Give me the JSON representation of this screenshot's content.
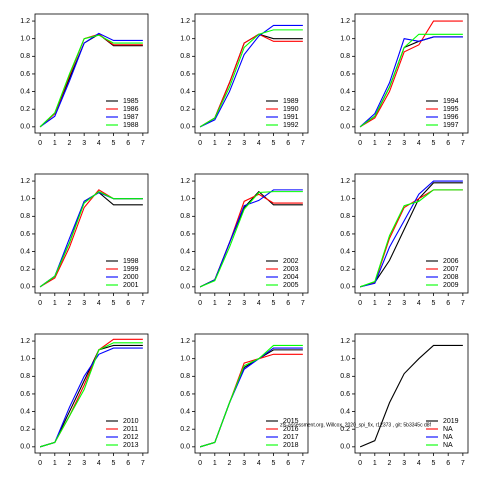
{
  "chart_data": [
    {
      "type": "line",
      "x": [
        0,
        1,
        2,
        3,
        4,
        5,
        6,
        7
      ],
      "xlim": [
        -0.35,
        7.35
      ],
      "xticks": [
        0,
        1,
        2,
        3,
        4,
        5,
        6,
        7
      ],
      "ylim": [
        -0.07,
        1.28
      ],
      "yticks": [
        {
          "value": 0,
          "label": "0.0"
        },
        0.2,
        0.4,
        0.6,
        0.8,
        {
          "value": 1,
          "label": "1.0"
        },
        1.2
      ],
      "legend": "bottom right",
      "series": [
        {
          "name": "1985",
          "color": "#000000",
          "values": [
            0,
            0.15,
            0.55,
            0.95,
            1.05,
            0.92,
            0.92,
            0.92
          ]
        },
        {
          "name": "1986",
          "color": "#ff0000",
          "values": [
            0,
            0.15,
            0.58,
            1.0,
            1.05,
            0.93,
            0.93,
            0.93
          ]
        },
        {
          "name": "1987",
          "color": "#0000ff",
          "values": [
            0,
            0.12,
            0.52,
            0.95,
            1.06,
            0.98,
            0.98,
            0.98
          ]
        },
        {
          "name": "1988",
          "color": "#00ff00",
          "values": [
            0,
            0.16,
            0.6,
            1.0,
            1.04,
            0.95,
            0.95,
            0.95
          ]
        }
      ]
    },
    {
      "type": "line",
      "x": [
        0,
        1,
        2,
        3,
        4,
        5,
        6,
        7
      ],
      "xlim": [
        -0.35,
        7.35
      ],
      "xticks": [
        0,
        1,
        2,
        3,
        4,
        5,
        6,
        7
      ],
      "ylim": [
        -0.07,
        1.28
      ],
      "yticks": [
        {
          "value": 0,
          "label": "0.0"
        },
        0.2,
        0.4,
        0.6,
        0.8,
        {
          "value": 1,
          "label": "1.0"
        },
        1.2
      ],
      "legend": "bottom right",
      "series": [
        {
          "name": "1989",
          "color": "#000000",
          "values": [
            0,
            0.1,
            0.5,
            0.95,
            1.05,
            1.0,
            1.0,
            1.0
          ]
        },
        {
          "name": "1990",
          "color": "#ff0000",
          "values": [
            0,
            0.1,
            0.5,
            0.95,
            1.05,
            0.97,
            0.97,
            0.97
          ]
        },
        {
          "name": "1991",
          "color": "#0000ff",
          "values": [
            0,
            0.08,
            0.4,
            0.82,
            1.03,
            1.15,
            1.15,
            1.15
          ]
        },
        {
          "name": "1992",
          "color": "#00ff00",
          "values": [
            0,
            0.1,
            0.45,
            0.9,
            1.05,
            1.1,
            1.1,
            1.1
          ]
        }
      ]
    },
    {
      "type": "line",
      "x": [
        0,
        1,
        2,
        3,
        4,
        5,
        6,
        7
      ],
      "xlim": [
        -0.35,
        7.35
      ],
      "xticks": [
        0,
        1,
        2,
        3,
        4,
        5,
        6,
        7
      ],
      "ylim": [
        -0.07,
        1.28
      ],
      "yticks": [
        {
          "value": 0,
          "label": "0.0"
        },
        0.2,
        0.4,
        0.6,
        0.8,
        {
          "value": 1,
          "label": "1.0"
        },
        1.2
      ],
      "legend": "bottom right",
      "series": [
        {
          "name": "1994",
          "color": "#000000",
          "values": [
            0,
            0.12,
            0.45,
            0.9,
            0.97,
            1.02,
            1.02,
            1.02
          ]
        },
        {
          "name": "1995",
          "color": "#ff0000",
          "values": [
            0,
            0.1,
            0.4,
            0.85,
            0.93,
            1.2,
            1.2,
            1.2
          ]
        },
        {
          "name": "1996",
          "color": "#0000ff",
          "values": [
            0,
            0.15,
            0.5,
            1.0,
            0.97,
            1.02,
            1.02,
            1.02
          ]
        },
        {
          "name": "1997",
          "color": "#00ff00",
          "values": [
            0,
            0.12,
            0.45,
            0.9,
            1.05,
            1.05,
            1.05,
            1.05
          ]
        }
      ]
    },
    {
      "type": "line",
      "x": [
        0,
        1,
        2,
        3,
        4,
        5,
        6,
        7
      ],
      "xlim": [
        -0.35,
        7.35
      ],
      "xticks": [
        0,
        1,
        2,
        3,
        4,
        5,
        6,
        7
      ],
      "ylim": [
        -0.07,
        1.28
      ],
      "yticks": [
        {
          "value": 0,
          "label": "0.0"
        },
        0.2,
        0.4,
        0.6,
        0.8,
        {
          "value": 1,
          "label": "1.0"
        },
        1.2
      ],
      "legend": "bottom right",
      "series": [
        {
          "name": "1998",
          "color": "#000000",
          "values": [
            0,
            0.12,
            0.5,
            0.97,
            1.07,
            0.93,
            0.93,
            0.93
          ]
        },
        {
          "name": "1999",
          "color": "#ff0000",
          "values": [
            0,
            0.1,
            0.45,
            0.9,
            1.1,
            1.0,
            1.0,
            1.0
          ]
        },
        {
          "name": "2000",
          "color": "#0000ff",
          "values": [
            0,
            0.12,
            0.55,
            0.97,
            1.07,
            1.0,
            1.0,
            1.0
          ]
        },
        {
          "name": "2001",
          "color": "#00ff00",
          "values": [
            0,
            0.12,
            0.5,
            0.95,
            1.08,
            1.0,
            1.0,
            1.0
          ]
        }
      ]
    },
    {
      "type": "line",
      "x": [
        0,
        1,
        2,
        3,
        4,
        5,
        6,
        7
      ],
      "xlim": [
        -0.35,
        7.35
      ],
      "xticks": [
        0,
        1,
        2,
        3,
        4,
        5,
        6,
        7
      ],
      "ylim": [
        -0.07,
        1.28
      ],
      "yticks": [
        {
          "value": 0,
          "label": "0.0"
        },
        0.2,
        0.4,
        0.6,
        0.8,
        {
          "value": 1,
          "label": "1.0"
        },
        1.2
      ],
      "legend": "bottom right",
      "series": [
        {
          "name": "2002",
          "color": "#000000",
          "values": [
            0,
            0.08,
            0.5,
            0.9,
            1.08,
            0.93,
            0.93,
            0.93
          ]
        },
        {
          "name": "2003",
          "color": "#ff0000",
          "values": [
            0,
            0.08,
            0.5,
            0.97,
            1.05,
            0.95,
            0.95,
            0.95
          ]
        },
        {
          "name": "2004",
          "color": "#0000ff",
          "values": [
            0,
            0.08,
            0.5,
            0.92,
            0.98,
            1.1,
            1.1,
            1.1
          ]
        },
        {
          "name": "2005",
          "color": "#00ff00",
          "values": [
            0,
            0.07,
            0.45,
            0.88,
            1.07,
            1.08,
            1.08,
            1.08
          ]
        }
      ]
    },
    {
      "type": "line",
      "x": [
        0,
        1,
        2,
        3,
        4,
        5,
        6,
        7
      ],
      "xlim": [
        -0.35,
        7.35
      ],
      "xticks": [
        0,
        1,
        2,
        3,
        4,
        5,
        6,
        7
      ],
      "ylim": [
        -0.07,
        1.28
      ],
      "yticks": [
        {
          "value": 0,
          "label": "0.0"
        },
        0.2,
        0.4,
        0.6,
        0.8,
        {
          "value": 1,
          "label": "1.0"
        },
        1.2
      ],
      "legend": "bottom right",
      "series": [
        {
          "name": "2006",
          "color": "#000000",
          "values": [
            0,
            0.05,
            0.3,
            0.65,
            1.0,
            1.18,
            1.18,
            1.18
          ]
        },
        {
          "name": "2007",
          "color": "#ff0000",
          "values": [
            0,
            0.05,
            0.55,
            0.9,
            1.0,
            1.1,
            1.1,
            1.1
          ]
        },
        {
          "name": "2008",
          "color": "#0000ff",
          "values": [
            0,
            0.04,
            0.45,
            0.75,
            1.05,
            1.2,
            1.2,
            1.2
          ]
        },
        {
          "name": "2009",
          "color": "#00ff00",
          "values": [
            0,
            0.06,
            0.58,
            0.92,
            0.97,
            1.1,
            1.1,
            1.1
          ]
        }
      ]
    },
    {
      "type": "line",
      "x": [
        0,
        1,
        2,
        3,
        4,
        5,
        6,
        7
      ],
      "xlim": [
        -0.35,
        7.35
      ],
      "xticks": [
        0,
        1,
        2,
        3,
        4,
        5,
        6,
        7
      ],
      "ylim": [
        -0.07,
        1.28
      ],
      "yticks": [
        {
          "value": 0,
          "label": "0.0"
        },
        0.2,
        0.4,
        0.6,
        0.8,
        {
          "value": 1,
          "label": "1.0"
        },
        1.2
      ],
      "legend": "bottom right",
      "series": [
        {
          "name": "2010",
          "color": "#000000",
          "values": [
            0,
            0.05,
            0.4,
            0.75,
            1.1,
            1.15,
            1.15,
            1.15
          ]
        },
        {
          "name": "2011",
          "color": "#ff0000",
          "values": [
            0,
            0.05,
            0.35,
            0.7,
            1.1,
            1.22,
            1.22,
            1.22
          ]
        },
        {
          "name": "2012",
          "color": "#0000ff",
          "values": [
            0,
            0.05,
            0.45,
            0.8,
            1.05,
            1.12,
            1.12,
            1.12
          ]
        },
        {
          "name": "2013",
          "color": "#00ff00",
          "values": [
            0,
            0.05,
            0.35,
            0.65,
            1.1,
            1.18,
            1.18,
            1.18
          ]
        }
      ]
    },
    {
      "type": "line",
      "x": [
        0,
        1,
        2,
        3,
        4,
        5,
        6,
        7
      ],
      "xlim": [
        -0.35,
        7.35
      ],
      "xticks": [
        0,
        1,
        2,
        3,
        4,
        5,
        6,
        7
      ],
      "ylim": [
        -0.07,
        1.28
      ],
      "yticks": [
        {
          "value": 0,
          "label": "0.0"
        },
        0.2,
        0.4,
        0.6,
        0.8,
        {
          "value": 1,
          "label": "1.0"
        },
        1.2
      ],
      "legend": "bottom right",
      "series": [
        {
          "name": "2015",
          "color": "#000000",
          "values": [
            0,
            0.05,
            0.5,
            0.9,
            1.0,
            1.1,
            1.1,
            1.1
          ]
        },
        {
          "name": "2016",
          "color": "#ff0000",
          "values": [
            0,
            0.05,
            0.5,
            0.95,
            1.0,
            1.05,
            1.05,
            1.05
          ]
        },
        {
          "name": "2017",
          "color": "#0000ff",
          "values": [
            0,
            0.05,
            0.5,
            0.88,
            1.0,
            1.12,
            1.12,
            1.12
          ]
        },
        {
          "name": "2018",
          "color": "#00ff00",
          "values": [
            0,
            0.05,
            0.5,
            0.92,
            1.0,
            1.15,
            1.15,
            1.15
          ]
        }
      ]
    },
    {
      "type": "line",
      "x": [
        0,
        1,
        2,
        3,
        4,
        5,
        6,
        7
      ],
      "xlim": [
        -0.35,
        7.35
      ],
      "xticks": [
        0,
        1,
        2,
        3,
        4,
        5,
        6,
        7
      ],
      "ylim": [
        -0.07,
        1.28
      ],
      "yticks": [
        {
          "value": 0,
          "label": "0.0"
        },
        0.2,
        0.4,
        0.6,
        0.8,
        {
          "value": 1,
          "label": "1.0"
        },
        1.2
      ],
      "legend": "bottom right",
      "series": [
        {
          "name": "2019",
          "color": "#000000",
          "values": [
            0,
            0.07,
            0.5,
            0.83,
            1.0,
            1.15,
            1.15,
            1.15
          ]
        },
        {
          "name": "NA",
          "color": "#ff0000",
          "values": [
            null,
            null,
            null,
            null,
            null,
            null,
            null,
            null
          ]
        },
        {
          "name": "NA",
          "color": "#0000ff",
          "values": [
            null,
            null,
            null,
            null,
            null,
            null,
            null,
            null
          ]
        },
        {
          "name": "NA",
          "color": "#00ff00",
          "values": [
            null,
            null,
            null,
            null,
            null,
            null,
            null,
            null
          ]
        }
      ]
    }
  ],
  "annotation": "zfs-assessment.org, Willcox_2020_spi_fix, r12373 , git: 5b3345c d8f"
}
